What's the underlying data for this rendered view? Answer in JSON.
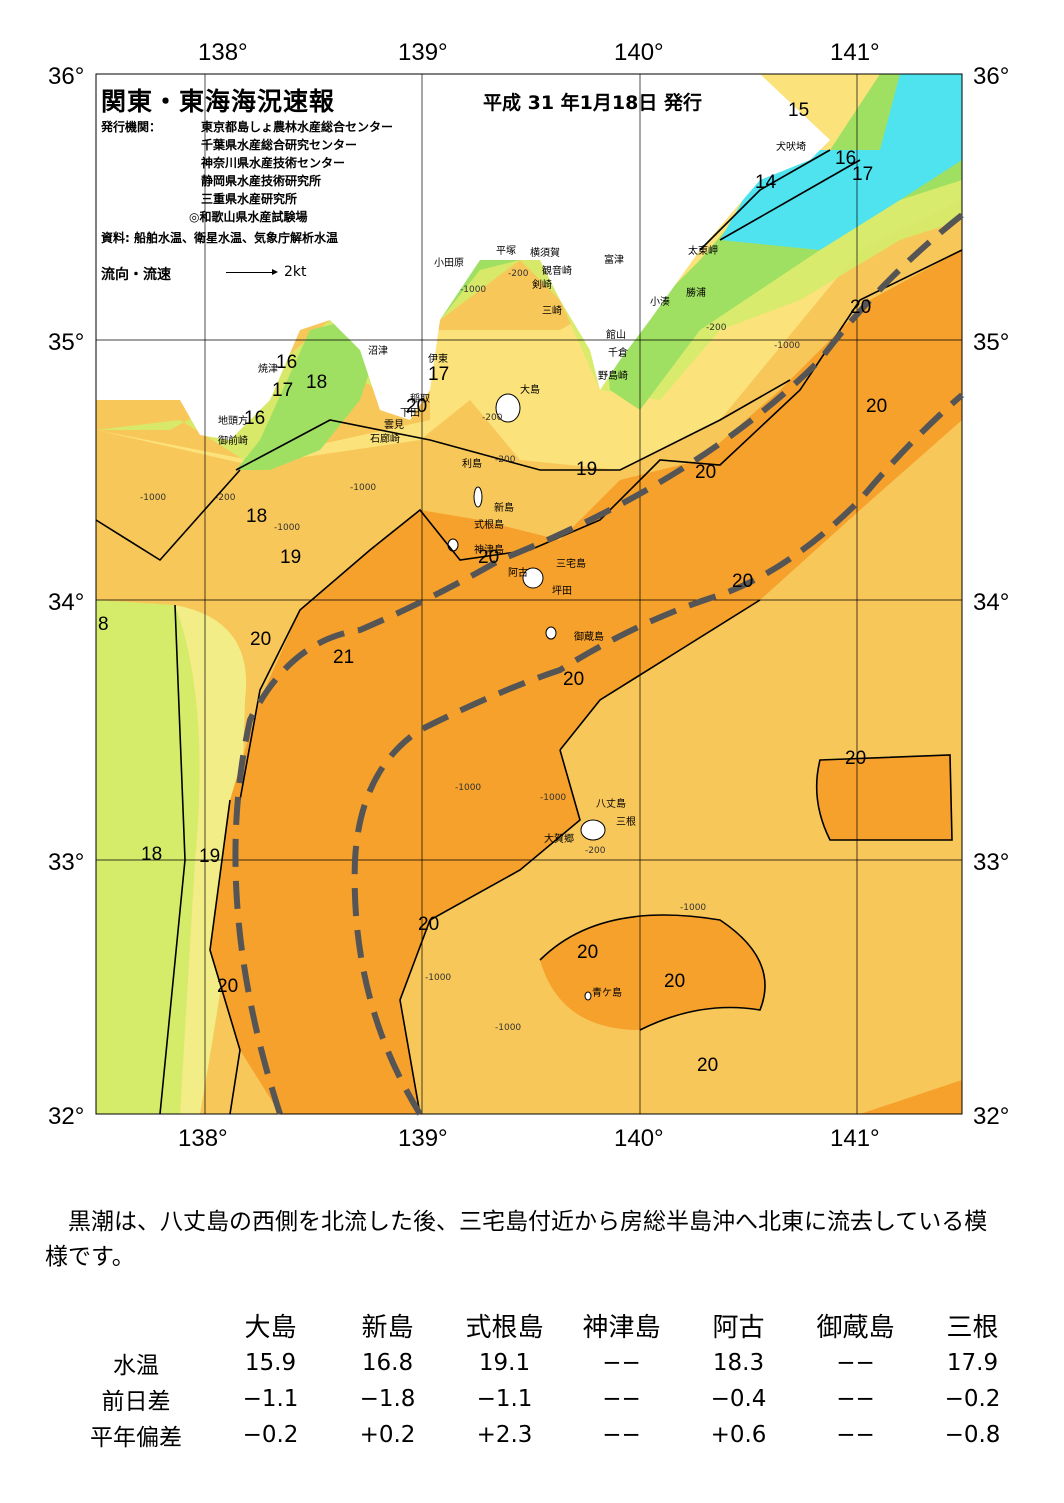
{
  "map": {
    "lon_labels": [
      "138°",
      "139°",
      "140°",
      "141°"
    ],
    "lat_labels": [
      "36°",
      "35°",
      "34°",
      "33°",
      "32°"
    ],
    "isotherm_labels": [
      "14",
      "15",
      "16",
      "17",
      "16",
      "17",
      "18",
      "17",
      "16",
      "8",
      "18",
      "19",
      "19",
      "20",
      "21",
      "20",
      "20",
      "20",
      "20",
      "20",
      "20",
      "20",
      "20",
      "18",
      "19",
      "20",
      "20",
      "20",
      "20",
      "20"
    ],
    "places": [
      "犬吠埼",
      "太東岬",
      "勝浦",
      "小湊",
      "館山",
      "千倉",
      "野島崎",
      "富津",
      "観音崎",
      "剣崎",
      "三崎",
      "横須賀",
      "平塚",
      "小田原",
      "伊東",
      "沼津",
      "焼津",
      "地頭方",
      "御前崎",
      "稲取",
      "下田",
      "雲見",
      "石廊崎",
      "大島",
      "利島",
      "新島",
      "式根島",
      "神津島",
      "三宅島",
      "阿古",
      "坪田",
      "御蔵島",
      "八丈島",
      "三根",
      "大賀郷",
      "青ケ島"
    ],
    "depth_labels": [
      "-200",
      "-1000"
    ],
    "colors": {
      "deep_orange": "#f5a12c",
      "orange": "#f8c75a",
      "yellow": "#fbe27a",
      "pale_yellow": "#f3ed87",
      "light_green": "#d4ec6a",
      "green": "#9fe063",
      "cyan": "#4fe3ef",
      "kuroshio_axis": "#555555"
    }
  },
  "header": {
    "title": "関東・東海海況速報",
    "date": "平成 31 年1月18日 発行",
    "publisher_label": "発行機関：",
    "publishers": [
      "東京都島しょ農林水産総合センター",
      "千葉県水産総合研究センター",
      "神奈川県水産技術センター",
      "静岡県水産技術研究所",
      "三重県水産研究所",
      "◎和歌山県水産試験場"
    ],
    "sources": "資料: 船舶水温、衛星水温、気象庁解析水温",
    "legend_label": "流向・流速",
    "legend_speed": "2kt"
  },
  "summary": "黒潮は、八丈島の西側を北流した後、三宅島付近から房総半島沖へ北東に流去している模様です。",
  "table": {
    "columns": [
      "大島",
      "新島",
      "式根島",
      "神津島",
      "阿古",
      "御蔵島",
      "三根"
    ],
    "rows": [
      {
        "label": "水温",
        "values": [
          "15.9",
          "16.8",
          "19.1",
          "−−",
          "18.3",
          "−−",
          "17.9"
        ]
      },
      {
        "label": "前日差",
        "values": [
          "−1.1",
          "−1.8",
          "−1.1",
          "−−",
          "−0.4",
          "−−",
          "−0.2"
        ]
      },
      {
        "label": "平年偏差",
        "values": [
          "−0.2",
          "+0.2",
          "+2.3",
          "−−",
          "+0.6",
          "−−",
          "−0.8"
        ]
      }
    ]
  }
}
